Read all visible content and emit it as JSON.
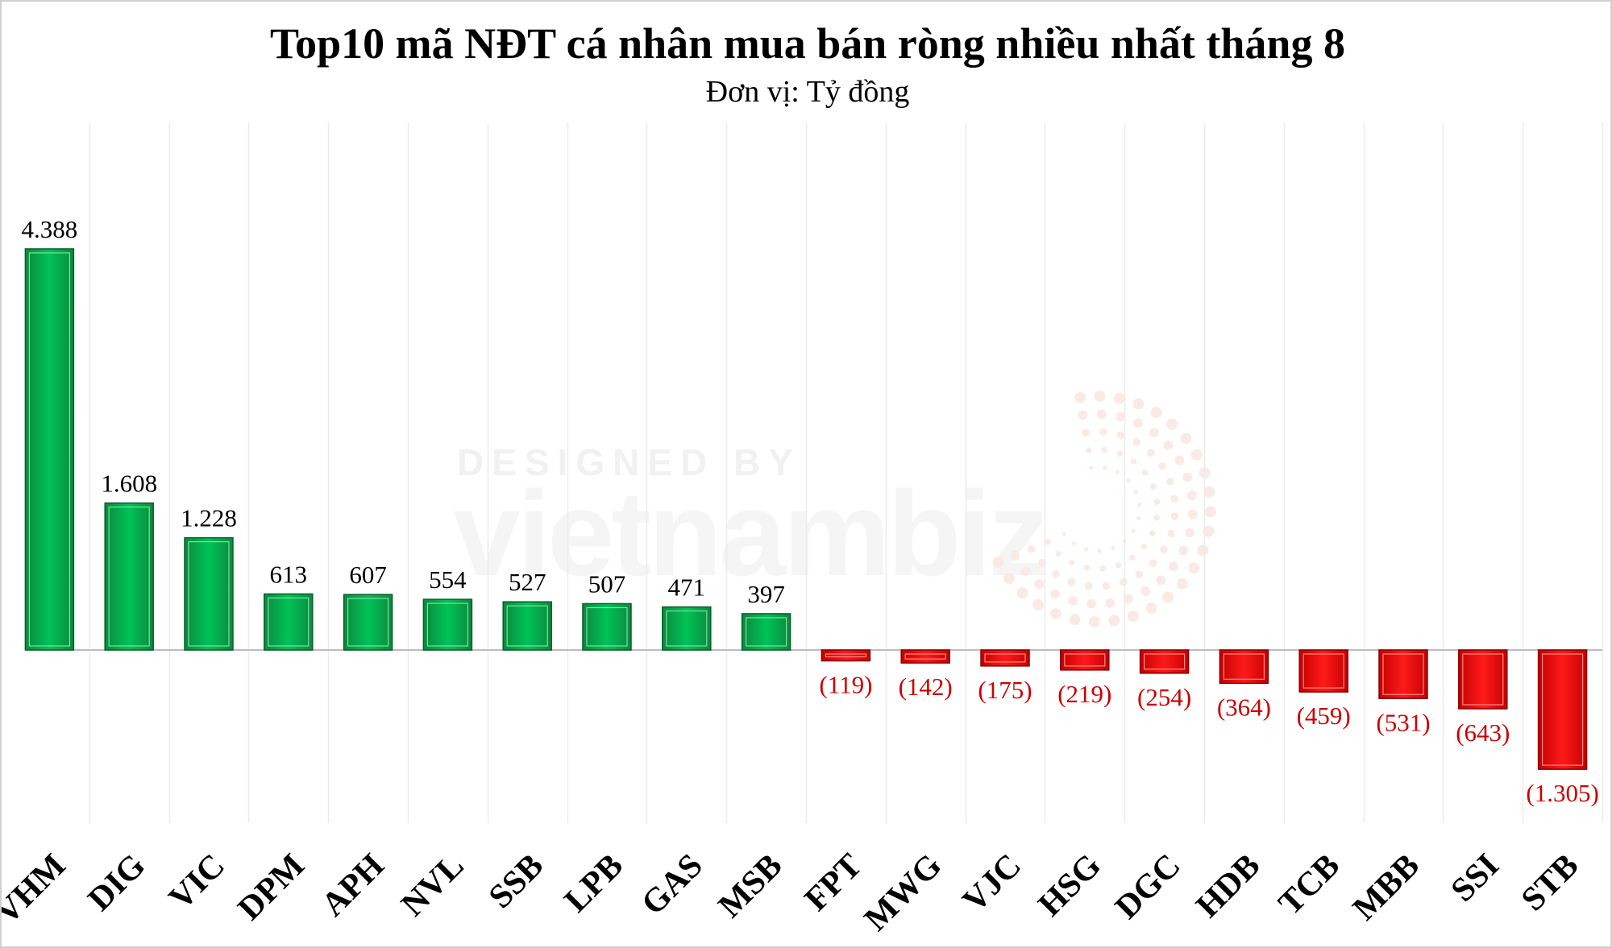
{
  "chart_data": {
    "type": "bar",
    "title": "Top10 mã NĐT cá nhân mua bán ròng nhiều nhất tháng 8",
    "subtitle": "Đơn vị: Tỷ đồng",
    "categories": [
      "VHM",
      "DIG",
      "VIC",
      "DPM",
      "APH",
      "NVL",
      "SSB",
      "LPB",
      "GAS",
      "MSB",
      "FPT",
      "MWG",
      "VJC",
      "HSG",
      "DGC",
      "HDB",
      "TCB",
      "MBB",
      "SSI",
      "STB"
    ],
    "values": [
      4388,
      1608,
      1228,
      613,
      607,
      554,
      527,
      507,
      471,
      397,
      -119,
      -142,
      -175,
      -219,
      -254,
      -364,
      -459,
      -531,
      -643,
      -1305
    ],
    "labels": [
      "4.388",
      "1.608",
      "1.228",
      "613",
      "607",
      "554",
      "527",
      "507",
      "471",
      "397",
      "(119)",
      "(142)",
      "(175)",
      "(219)",
      "(254)",
      "(364)",
      "(459)",
      "(531)",
      "(643)",
      "(1.305)"
    ],
    "ylim": [
      -1500,
      4500
    ],
    "grid": "vertical",
    "colors": {
      "positive": "#00b050",
      "negative": "#ff0000",
      "positive_label": "#000000",
      "negative_label": "#cc0000"
    }
  },
  "watermark": {
    "line1": "DESIGNED BY",
    "line2": "vietnambiz"
  }
}
